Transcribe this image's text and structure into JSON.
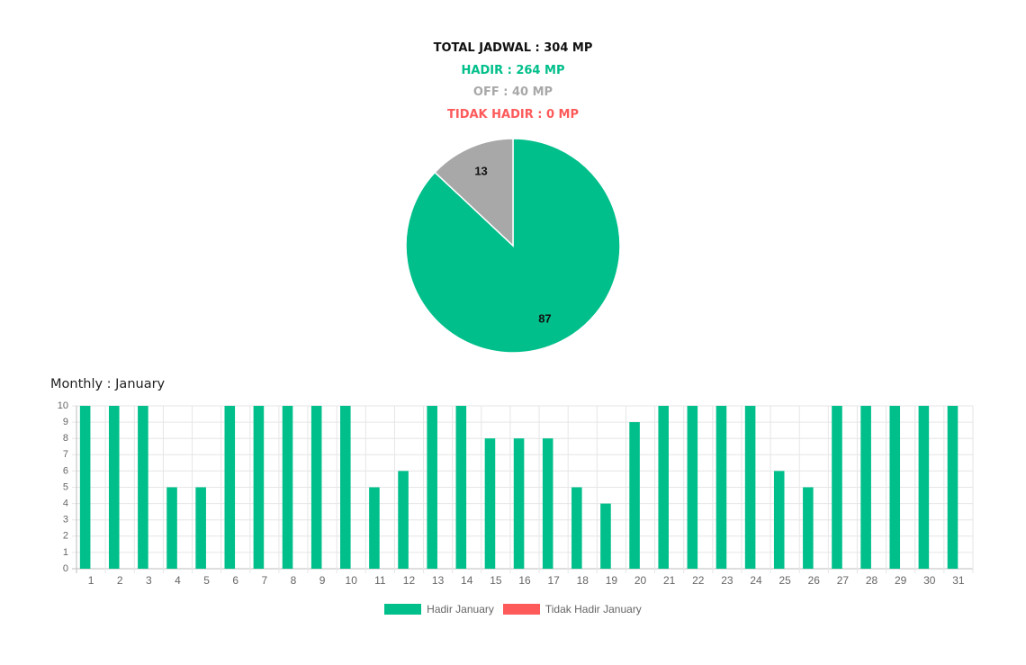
{
  "summary": {
    "total": "TOTAL JADWAL : 304 MP",
    "hadir": "HADIR : 264 MP",
    "off": "OFF : 40 MP",
    "tidak_hadir": "TIDAK HADIR : 0 MP"
  },
  "monthly_title": "Monthly : January",
  "colors": {
    "hadir": "#00bf8a",
    "off": "#a8a8a8",
    "tidak_hadir": "#ff5a5a"
  },
  "chart_data": [
    {
      "type": "pie",
      "slices": [
        {
          "label": "",
          "value": 87,
          "color": "#00bf8a"
        },
        {
          "label": "",
          "value": 13,
          "color": "#a8a8a8"
        }
      ],
      "data_labels": [
        "87",
        "13"
      ]
    },
    {
      "type": "bar",
      "categories": [
        "1",
        "2",
        "3",
        "4",
        "5",
        "6",
        "7",
        "8",
        "9",
        "10",
        "11",
        "12",
        "13",
        "14",
        "15",
        "16",
        "17",
        "18",
        "19",
        "20",
        "21",
        "22",
        "23",
        "24",
        "25",
        "26",
        "27",
        "28",
        "29",
        "30",
        "31"
      ],
      "series": [
        {
          "name": "Hadir January",
          "color": "#00bf8a",
          "values": [
            10,
            10,
            10,
            5,
            5,
            10,
            10,
            10,
            10,
            10,
            5,
            6,
            10,
            10,
            8,
            8,
            8,
            5,
            4,
            9,
            10,
            10,
            10,
            10,
            6,
            5,
            10,
            10,
            10,
            10,
            10
          ]
        },
        {
          "name": "Tidak Hadir January",
          "color": "#ff5a5a",
          "values": [
            0,
            0,
            0,
            0,
            0,
            0,
            0,
            0,
            0,
            0,
            0,
            0,
            0,
            0,
            0,
            0,
            0,
            0,
            0,
            0,
            0,
            0,
            0,
            0,
            0,
            0,
            0,
            0,
            0,
            0,
            0
          ]
        }
      ],
      "ylim": [
        0,
        10
      ],
      "yticks": [
        "0",
        "1",
        "2",
        "3",
        "4",
        "5",
        "6",
        "7",
        "8",
        "9",
        "10"
      ],
      "grid": true,
      "legend_position": "bottom"
    }
  ]
}
